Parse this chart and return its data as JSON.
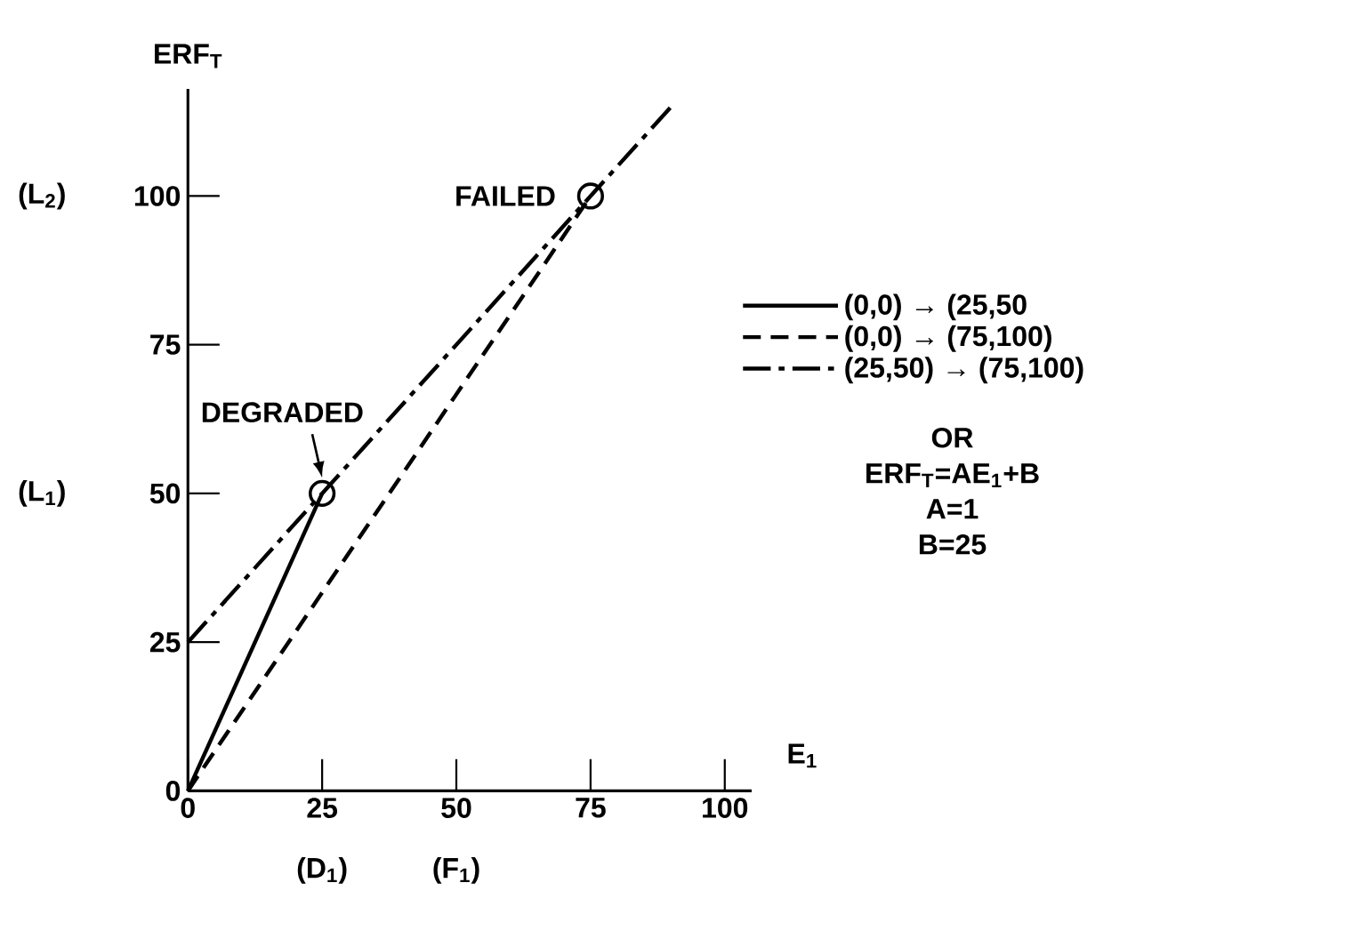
{
  "chart_data": {
    "type": "line",
    "ylabel": "ERF$_{T}$",
    "xlabel": "E$_{1}$",
    "xlim": [
      0,
      105
    ],
    "ylim": [
      0,
      118
    ],
    "xticks": [
      0,
      25,
      50,
      75,
      100
    ],
    "yticks": [
      0,
      25,
      50,
      75,
      100
    ],
    "grid": false,
    "legend": "right",
    "marker": "none",
    "series": [
      {
        "name": "(0,0) → (25,50",
        "color": "#000000",
        "x": [
          0,
          25
        ],
        "values": [
          0,
          50
        ],
        "line_style": "solid"
      },
      {
        "name": "(0,0) → (75,100)",
        "color": "#000000",
        "x": [
          0,
          75
        ],
        "values": [
          0,
          100
        ],
        "line_style": "dashed"
      },
      {
        "name": "(25,50) → (75,100)",
        "color": "#000000",
        "x": [
          0,
          25,
          75,
          90
        ],
        "values": [
          25,
          50,
          100,
          115
        ],
        "line_style": "dashdot"
      },
      {
        "type": "scatter",
        "color": "#000000",
        "x": [
          25,
          75
        ],
        "values": [
          50,
          100
        ],
        "marker": "circle"
      }
    ],
    "annotations": [
      {
        "text": "DEGRADED",
        "x": 25,
        "y": 50
      },
      {
        "text": "FAILED",
        "x": 75,
        "y": 100
      },
      "(L$_{1}$)",
      "(L$_{2}$)",
      "(D$_{1}$)",
      "(F$_{1}$)",
      "OR",
      "ERF$_{T}$=AE$_{1}$+B",
      "A=1",
      "B=25"
    ]
  }
}
